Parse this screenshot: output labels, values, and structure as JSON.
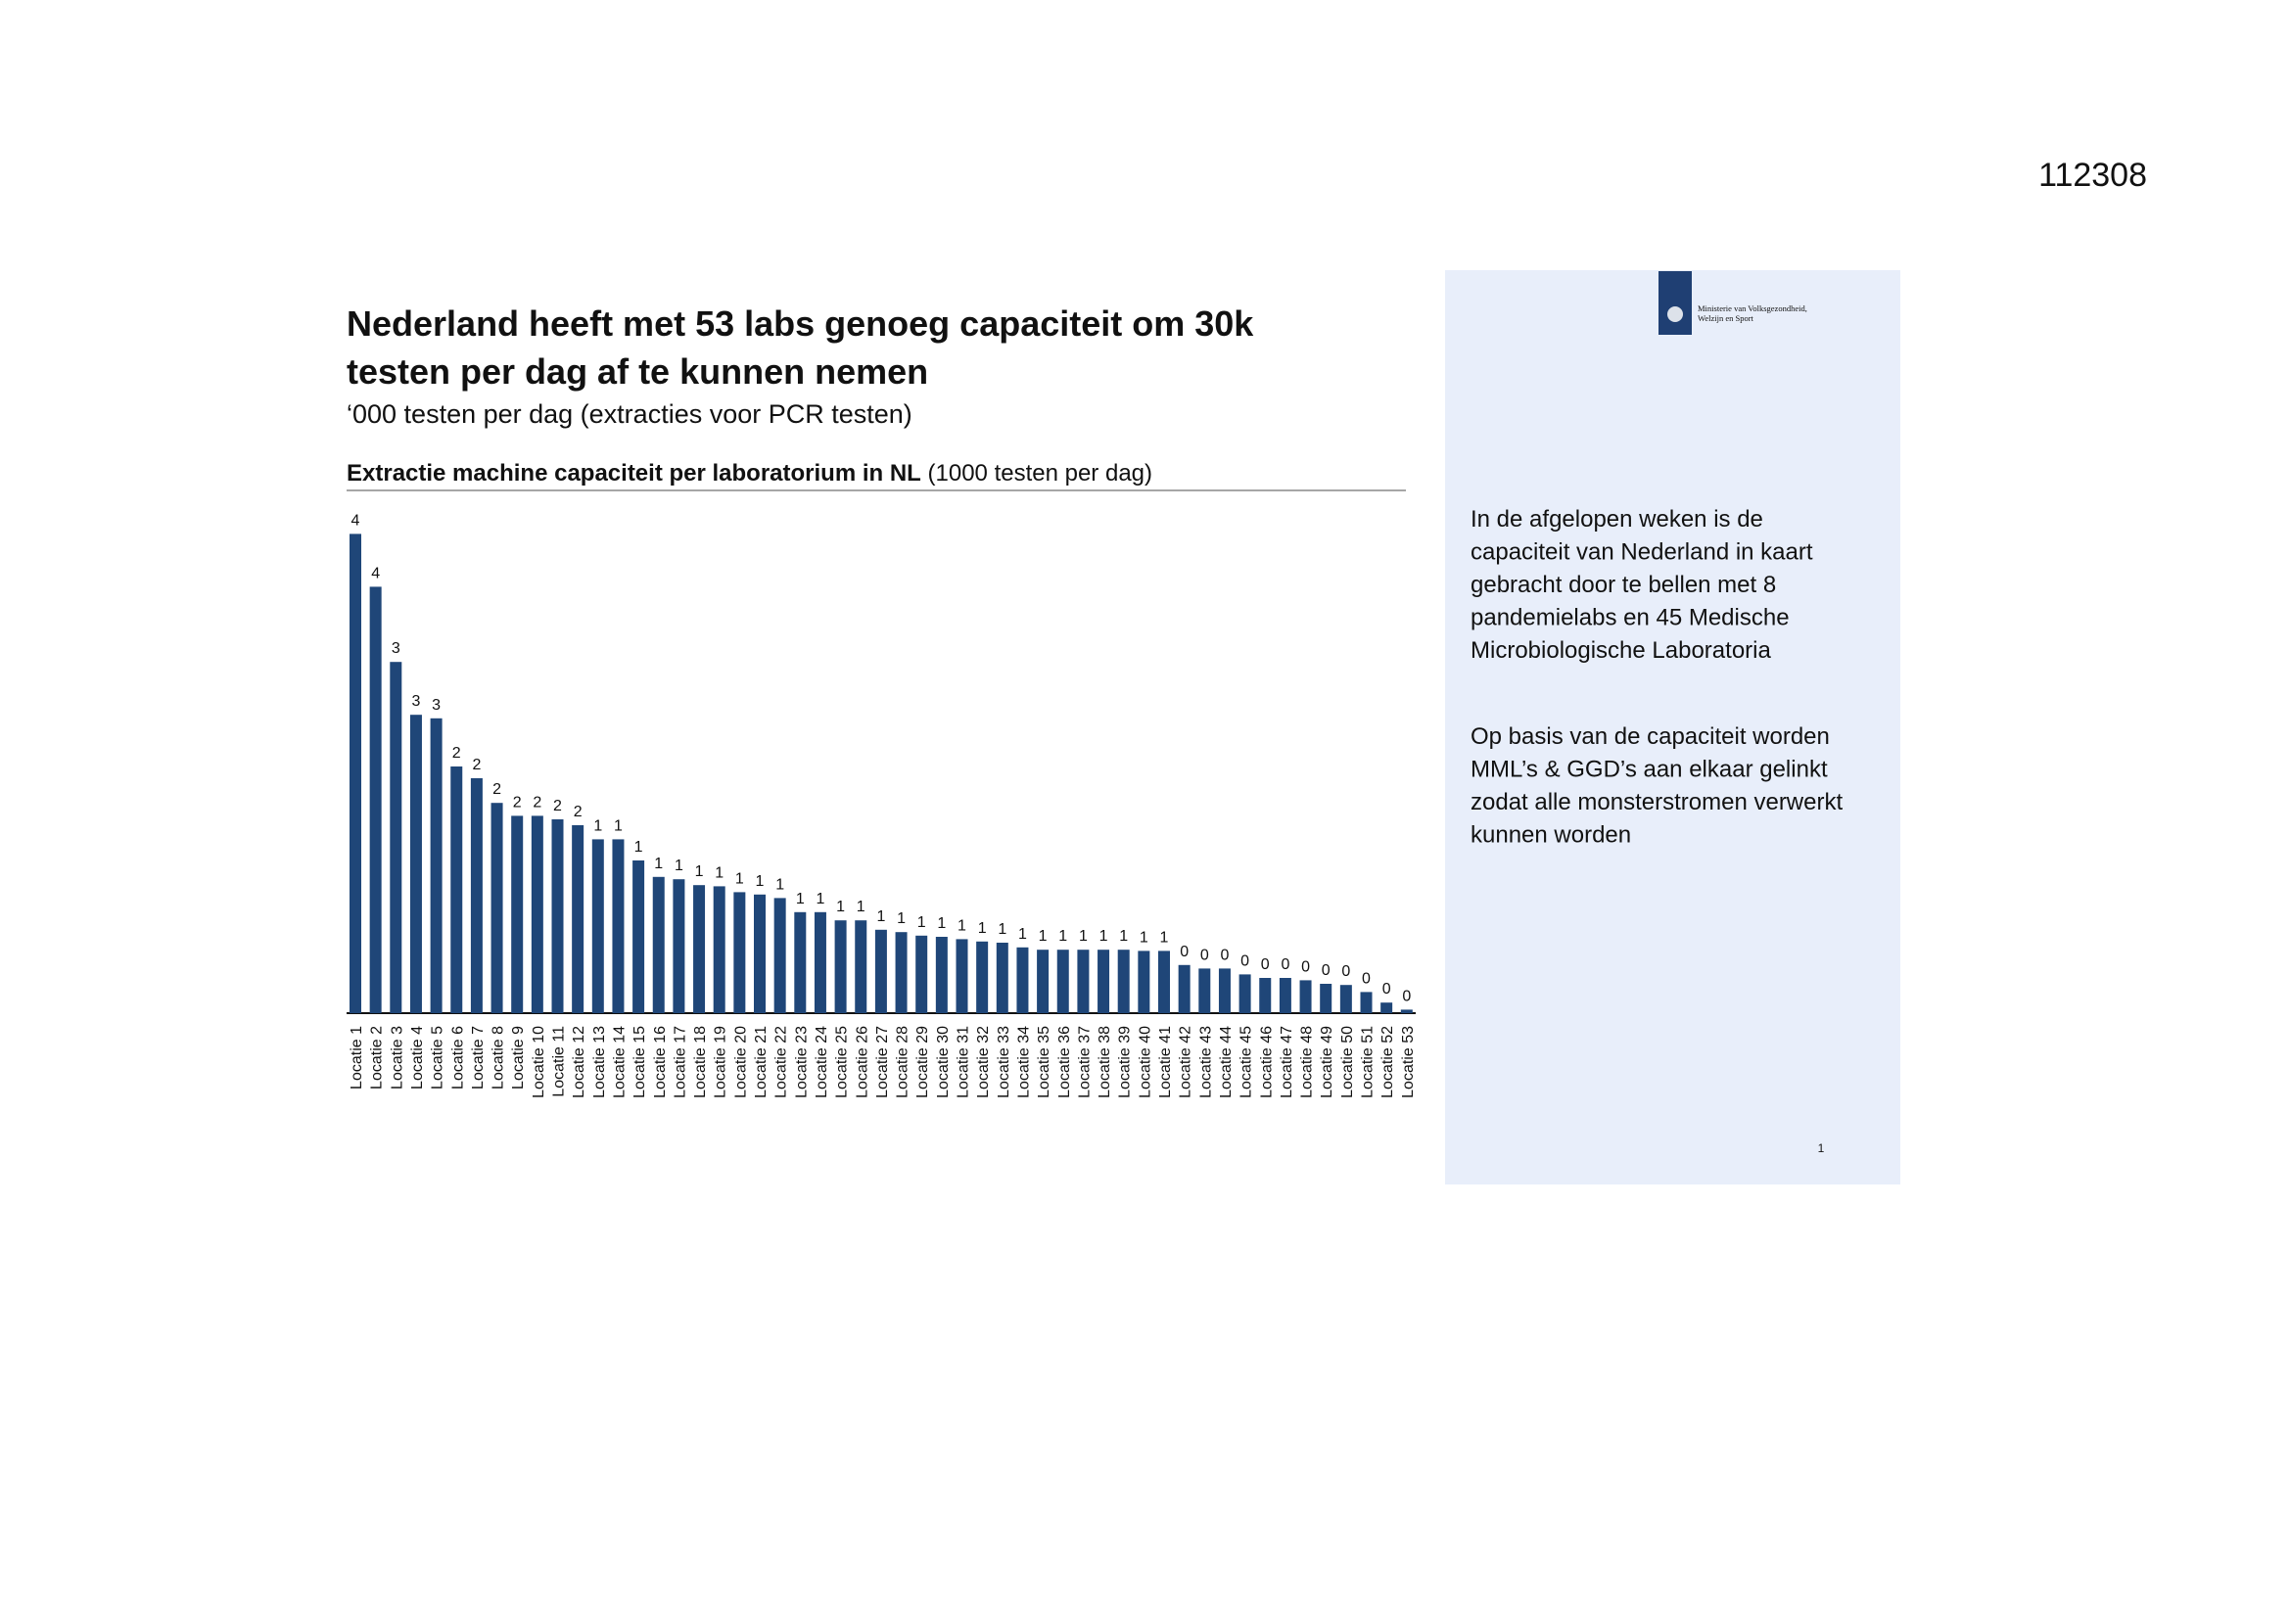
{
  "document_id": "112308",
  "title_lines": [
    "Nederland heeft met 53 labs genoeg capaciteit om 30k",
    "testen per dag af te kunnen nemen"
  ],
  "subtitle": "‘000 testen per dag (extracties voor PCR testen)",
  "chart_data": {
    "type": "bar",
    "title": "Extractie machine capaciteit per laboratorium in NL",
    "unit_label": "(1000 testen per dag)",
    "color": "#1f4678",
    "categories": [
      "Locatie 1",
      "Locatie 2",
      "Locatie 3",
      "Locatie 4",
      "Locatie 5",
      "Locatie 6",
      "Locatie 7",
      "Locatie 8",
      "Locatie 9",
      "Locatie 10",
      "Locatie 11",
      "Locatie 12",
      "Locatie 13",
      "Locatie 14",
      "Locatie 15",
      "Locatie 16",
      "Locatie 17",
      "Locatie 18",
      "Locatie 19",
      "Locatie 20",
      "Locatie 21",
      "Locatie 22",
      "Locatie 23",
      "Locatie 24",
      "Locatie 25",
      "Locatie 26",
      "Locatie 27",
      "Locatie 28",
      "Locatie 29",
      "Locatie 30",
      "Locatie 31",
      "Locatie 32",
      "Locatie 33",
      "Locatie 34",
      "Locatie 35",
      "Locatie 36",
      "Locatie 37",
      "Locatie 38",
      "Locatie 39",
      "Locatie 40",
      "Locatie 41",
      "Locatie 42",
      "Locatie 43",
      "Locatie 44",
      "Locatie 45",
      "Locatie 46",
      "Locatie 47",
      "Locatie 48",
      "Locatie 49",
      "Locatie 50",
      "Locatie 51",
      "Locatie 52",
      "Locatie 53"
    ],
    "values": [
      4.08,
      3.63,
      2.99,
      2.54,
      2.51,
      2.1,
      2.0,
      1.79,
      1.68,
      1.68,
      1.65,
      1.6,
      1.48,
      1.48,
      1.3,
      1.16,
      1.14,
      1.09,
      1.08,
      1.03,
      1.01,
      0.98,
      0.86,
      0.86,
      0.79,
      0.79,
      0.71,
      0.69,
      0.66,
      0.65,
      0.63,
      0.61,
      0.6,
      0.56,
      0.54,
      0.54,
      0.54,
      0.54,
      0.54,
      0.53,
      0.53,
      0.41,
      0.38,
      0.38,
      0.33,
      0.3,
      0.3,
      0.28,
      0.25,
      0.24,
      0.18,
      0.09,
      0.03
    ],
    "value_labels": [
      "4",
      "4",
      "3",
      "3",
      "3",
      "2",
      "2",
      "2",
      "2",
      "2",
      "2",
      "2",
      "1",
      "1",
      "1",
      "1",
      "1",
      "1",
      "1",
      "1",
      "1",
      "1",
      "1",
      "1",
      "1",
      "1",
      "1",
      "1",
      "1",
      "1",
      "1",
      "1",
      "1",
      "1",
      "1",
      "1",
      "1",
      "1",
      "1",
      "1",
      "1",
      "0",
      "0",
      "0",
      "0",
      "0",
      "0",
      "0",
      "0",
      "0",
      "0",
      "0",
      "0"
    ]
  },
  "sidebar": {
    "logo_text": [
      "Ministerie van Volksgezondheid,",
      "Welzijn en Sport"
    ],
    "paragraphs": [
      [
        "In de afgelopen weken is de",
        "capaciteit van Nederland in kaart",
        "gebracht door te bellen met 8",
        "pandemielabs en 45 Medische",
        "Microbiologische Laboratoria"
      ],
      [
        "Op basis van de capaciteit worden",
        "MML’s & GGD’s aan elkaar gelinkt",
        "zodat alle monsterstromen verwerkt",
        "kunnen worden"
      ]
    ],
    "page_number": "1"
  }
}
